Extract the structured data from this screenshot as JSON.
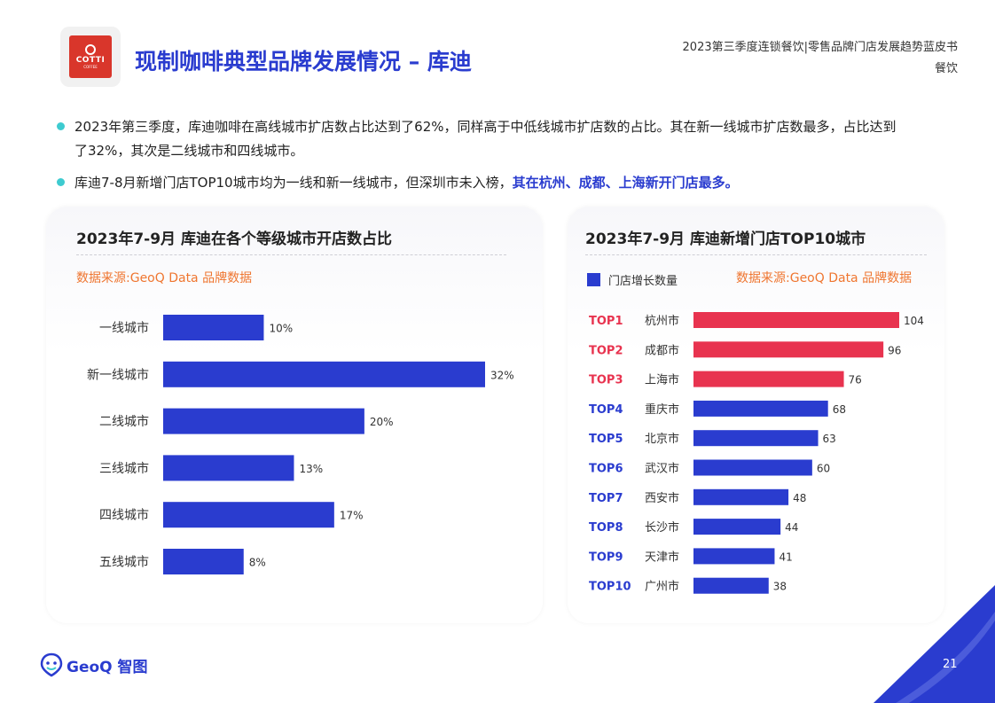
{
  "header": {
    "logo_text": "COTTI",
    "logo_sub": "COFFEE",
    "page_title": "现制咖啡典型品牌发展情况 – 库迪",
    "doc_title": "2023第三季度连锁餐饮|零售品牌门店发展趋势蓝皮书",
    "doc_section": "餐饮"
  },
  "bullets": {
    "b1": "2023年第三季度，库迪咖啡在高线城市扩店数占比达到了62%，同样高于中低线城市扩店数的占比。其在新一线城市扩店数最多，占比达到了32%，其次是二线城市和四线城市。",
    "b2_plain": "库迪7-8月新增门店TOP10城市均为一线和新一线城市，但深圳市未入榜，",
    "b2_highlight": "其在杭州、成都、上海新开门店最多。"
  },
  "colors": {
    "primary_blue": "#2a3ccf",
    "top_red": "#e8334f",
    "source_orange": "#ef7630",
    "bullet_teal": "#3ecbd0"
  },
  "left_panel": {
    "title": "2023年7-9月 库迪在各个等级城市开店数占比",
    "source": "数据来源:GeoQ Data 品牌数据"
  },
  "right_panel": {
    "title": "2023年7-9月 库迪新增门店TOP10城市",
    "source": "数据来源:GeoQ Data 品牌数据",
    "legend": "门店增长数量"
  },
  "chart_data": [
    {
      "type": "bar",
      "orientation": "horizontal",
      "title": "2023年7-9月 库迪在各个等级城市开店数占比",
      "categories": [
        "一线城市",
        "新一线城市",
        "二线城市",
        "三线城市",
        "四线城市",
        "五线城市"
      ],
      "values": [
        10,
        32,
        20,
        13,
        17,
        8
      ],
      "value_labels": [
        "10%",
        "32%",
        "20%",
        "13%",
        "17%",
        "8%"
      ],
      "unit": "%",
      "xlim": [
        0,
        32
      ],
      "grid": false,
      "bar_color": "#2a3ccf"
    },
    {
      "type": "bar",
      "orientation": "horizontal",
      "title": "2023年7-9月 库迪新增门店TOP10城市",
      "ranks": [
        "TOP1",
        "TOP2",
        "TOP3",
        "TOP4",
        "TOP5",
        "TOP6",
        "TOP7",
        "TOP8",
        "TOP9",
        "TOP10"
      ],
      "categories": [
        "杭州市",
        "成都市",
        "上海市",
        "重庆市",
        "北京市",
        "武汉市",
        "西安市",
        "长沙市",
        "天津市",
        "广州市"
      ],
      "series": [
        {
          "name": "门店增长数量",
          "values": [
            104,
            96,
            76,
            68,
            63,
            60,
            48,
            44,
            41,
            38
          ]
        }
      ],
      "highlight_top_n": 3,
      "xlim": [
        0,
        104
      ],
      "grid": false,
      "legend_position": "top-left",
      "bar_color": "#2a3ccf",
      "highlight_color": "#e8334f"
    }
  ],
  "footer": {
    "brand": "GeoQ 智图",
    "page_number": "21"
  }
}
